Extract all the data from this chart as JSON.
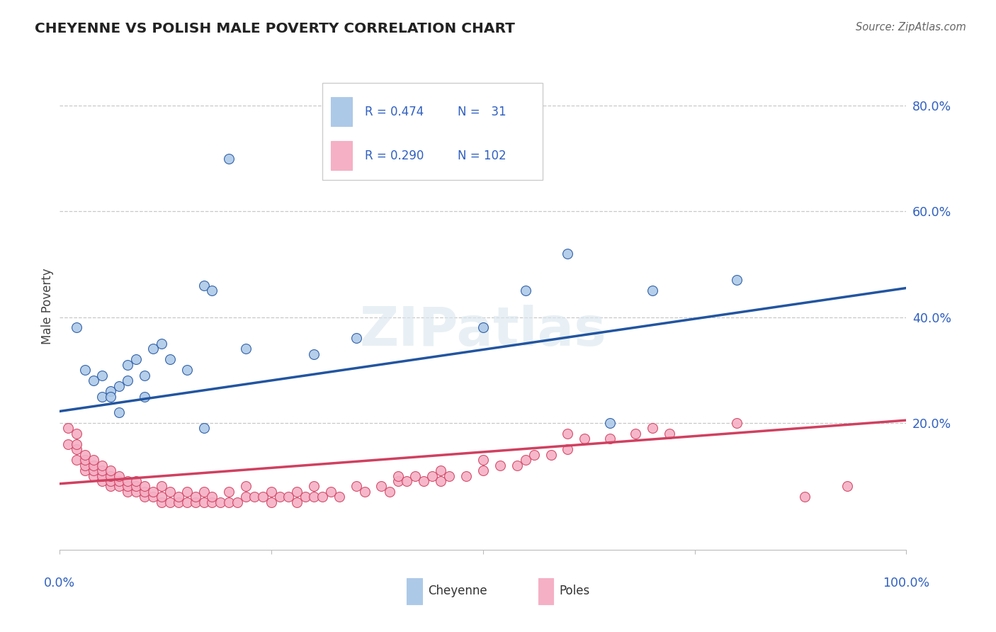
{
  "title": "CHEYENNE VS POLISH MALE POVERTY CORRELATION CHART",
  "source": "Source: ZipAtlas.com",
  "ylabel": "Male Poverty",
  "xlim": [
    0,
    1.0
  ],
  "ylim": [
    -0.04,
    0.88
  ],
  "cheyenne_R": 0.474,
  "cheyenne_N": 31,
  "poles_R": 0.29,
  "poles_N": 102,
  "cheyenne_color": "#adc9e8",
  "cheyenne_line_color": "#2255a0",
  "poles_color": "#f5b0c5",
  "poles_line_color": "#d04060",
  "background_color": "#ffffff",
  "grid_color": "#c8c8c8",
  "title_color": "#222222",
  "axis_label_color": "#3060c0",
  "cheyenne_line_start_y": 0.222,
  "cheyenne_line_end_y": 0.455,
  "poles_line_start_y": 0.085,
  "poles_line_end_y": 0.205,
  "cheyenne_x": [
    0.02,
    0.03,
    0.04,
    0.05,
    0.05,
    0.06,
    0.06,
    0.07,
    0.07,
    0.08,
    0.08,
    0.09,
    0.1,
    0.1,
    0.11,
    0.12,
    0.13,
    0.15,
    0.17,
    0.18,
    0.2,
    0.22,
    0.3,
    0.35,
    0.5,
    0.55,
    0.6,
    0.65,
    0.7,
    0.8,
    0.17
  ],
  "cheyenne_y": [
    0.38,
    0.3,
    0.28,
    0.25,
    0.29,
    0.26,
    0.25,
    0.27,
    0.22,
    0.28,
    0.31,
    0.32,
    0.29,
    0.25,
    0.34,
    0.35,
    0.32,
    0.3,
    0.46,
    0.45,
    0.7,
    0.34,
    0.33,
    0.36,
    0.38,
    0.45,
    0.52,
    0.2,
    0.45,
    0.47,
    0.19
  ],
  "poles_x": [
    0.01,
    0.01,
    0.02,
    0.02,
    0.02,
    0.02,
    0.03,
    0.03,
    0.03,
    0.03,
    0.04,
    0.04,
    0.04,
    0.04,
    0.05,
    0.05,
    0.05,
    0.05,
    0.06,
    0.06,
    0.06,
    0.06,
    0.07,
    0.07,
    0.07,
    0.08,
    0.08,
    0.08,
    0.09,
    0.09,
    0.09,
    0.1,
    0.1,
    0.1,
    0.11,
    0.11,
    0.12,
    0.12,
    0.12,
    0.13,
    0.13,
    0.14,
    0.14,
    0.15,
    0.15,
    0.16,
    0.16,
    0.17,
    0.17,
    0.18,
    0.18,
    0.19,
    0.2,
    0.2,
    0.21,
    0.22,
    0.22,
    0.23,
    0.24,
    0.25,
    0.25,
    0.26,
    0.27,
    0.28,
    0.28,
    0.29,
    0.3,
    0.3,
    0.31,
    0.32,
    0.33,
    0.35,
    0.36,
    0.38,
    0.39,
    0.4,
    0.4,
    0.41,
    0.42,
    0.43,
    0.44,
    0.45,
    0.45,
    0.46,
    0.48,
    0.5,
    0.5,
    0.52,
    0.54,
    0.55,
    0.56,
    0.58,
    0.6,
    0.6,
    0.62,
    0.65,
    0.68,
    0.7,
    0.72,
    0.8,
    0.88,
    0.93
  ],
  "poles_y": [
    0.19,
    0.16,
    0.13,
    0.15,
    0.16,
    0.18,
    0.11,
    0.12,
    0.13,
    0.14,
    0.1,
    0.11,
    0.12,
    0.13,
    0.09,
    0.1,
    0.11,
    0.12,
    0.08,
    0.09,
    0.1,
    0.11,
    0.08,
    0.09,
    0.1,
    0.07,
    0.08,
    0.09,
    0.07,
    0.08,
    0.09,
    0.06,
    0.07,
    0.08,
    0.06,
    0.07,
    0.05,
    0.06,
    0.08,
    0.05,
    0.07,
    0.05,
    0.06,
    0.05,
    0.07,
    0.05,
    0.06,
    0.05,
    0.07,
    0.05,
    0.06,
    0.05,
    0.05,
    0.07,
    0.05,
    0.06,
    0.08,
    0.06,
    0.06,
    0.05,
    0.07,
    0.06,
    0.06,
    0.05,
    0.07,
    0.06,
    0.06,
    0.08,
    0.06,
    0.07,
    0.06,
    0.08,
    0.07,
    0.08,
    0.07,
    0.09,
    0.1,
    0.09,
    0.1,
    0.09,
    0.1,
    0.09,
    0.11,
    0.1,
    0.1,
    0.11,
    0.13,
    0.12,
    0.12,
    0.13,
    0.14,
    0.14,
    0.15,
    0.18,
    0.17,
    0.17,
    0.18,
    0.19,
    0.18,
    0.2,
    0.06,
    0.08
  ],
  "ytick_values": [
    0.2,
    0.4,
    0.6,
    0.8
  ],
  "ytick_labels": [
    "20.0%",
    "40.0%",
    "60.0%",
    "80.0%"
  ]
}
